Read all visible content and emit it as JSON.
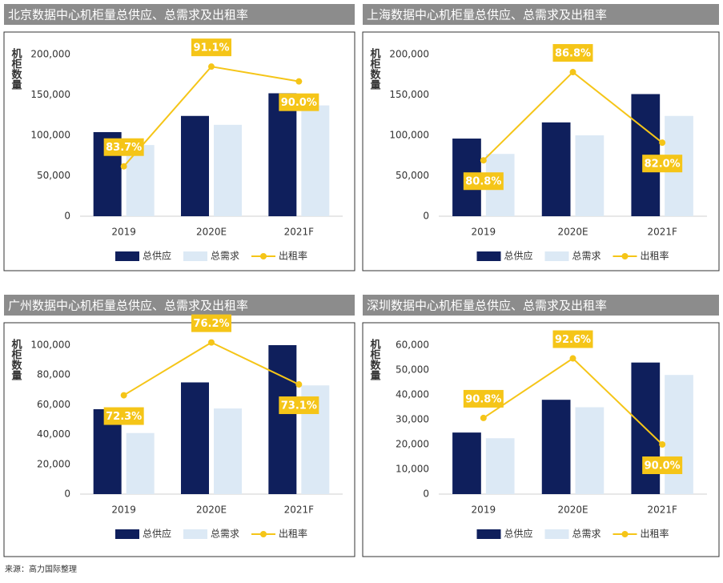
{
  "chart_data": [
    {
      "type": "bar-line",
      "title": "北京数据中心机柜量总供应、总需求及出租率",
      "y_label": "机柜数量",
      "categories": [
        "2019",
        "2020E",
        "2021F"
      ],
      "ylim": [
        0,
        200000
      ],
      "yticks": [
        0,
        {
          "value": 50000,
          "label": "50,000"
        },
        {
          "value": 100000,
          "label": "100,000"
        },
        {
          "value": 150000,
          "label": "150,000"
        },
        {
          "value": 200000,
          "label": "200,000"
        }
      ],
      "y2lim": [
        80,
        92
      ],
      "series": [
        {
          "name": "总供应",
          "color": "#0f1f5c",
          "values": [
            104000,
            124000,
            152000
          ]
        },
        {
          "name": "总需求",
          "color": "#dce9f5",
          "values": [
            88000,
            113000,
            137000
          ]
        },
        {
          "name": "出租率",
          "color": "#f5c518",
          "axis": "y2",
          "values": [
            83.7,
            91.1,
            90.0
          ],
          "value_labels": [
            "83.7%",
            "91.1%",
            "90.0%"
          ]
        }
      ]
    },
    {
      "type": "bar-line",
      "title": "上海数据中心机柜量总供应、总需求及出租率",
      "y_label": "机柜数量",
      "categories": [
        "2019",
        "2020E",
        "2021F"
      ],
      "ylim": [
        0,
        200000
      ],
      "yticks": [
        0,
        {
          "value": 50000,
          "label": "50,000"
        },
        {
          "value": 100000,
          "label": "100,000"
        },
        {
          "value": 150000,
          "label": "150,000"
        },
        {
          "value": 200000,
          "label": "200,000"
        }
      ],
      "y2lim": [
        77,
        88
      ],
      "series": [
        {
          "name": "总供应",
          "color": "#0f1f5c",
          "values": [
            96000,
            116000,
            151000
          ]
        },
        {
          "name": "总需求",
          "color": "#dce9f5",
          "values": [
            77000,
            100000,
            124000
          ]
        },
        {
          "name": "出租率",
          "color": "#f5c518",
          "axis": "y2",
          "values": [
            80.8,
            86.8,
            82.0
          ],
          "value_labels": [
            "80.8%",
            "86.8%",
            "82.0%"
          ]
        }
      ]
    },
    {
      "type": "bar-line",
      "title": "广州数据中心机柜量总供应、总需求及出租率",
      "y_label": "机柜数量",
      "categories": [
        "2019",
        "2020E",
        "2021F"
      ],
      "ylim": [
        0,
        100000
      ],
      "yticks": [
        0,
        {
          "value": 20000,
          "label": "20,000"
        },
        {
          "value": 40000,
          "label": "40,000"
        },
        {
          "value": 60000,
          "label": "60,000"
        },
        {
          "value": 80000,
          "label": "80,000"
        },
        {
          "value": 100000,
          "label": "100,000"
        }
      ],
      "y2lim": [
        65,
        76
      ],
      "series": [
        {
          "name": "总供应",
          "color": "#0f1f5c",
          "values": [
            57000,
            75000,
            100000
          ]
        },
        {
          "name": "总需求",
          "color": "#dce9f5",
          "values": [
            41000,
            57500,
            73000
          ]
        },
        {
          "name": "出租率",
          "color": "#f5c518",
          "axis": "y2",
          "values": [
            72.3,
            76.2,
            73.1
          ],
          "value_labels": [
            "72.3%",
            "76.2%",
            "73.1%"
          ]
        }
      ]
    },
    {
      "type": "bar-line",
      "title": "深圳数据中心机柜量总供应、总需求及出租率",
      "y_label": "机柜数量",
      "categories": [
        "2019",
        "2020E",
        "2021F"
      ],
      "ylim": [
        0,
        60000
      ],
      "yticks": [
        0,
        {
          "value": 10000,
          "label": "10,000"
        },
        {
          "value": 20000,
          "label": "20,000"
        },
        {
          "value": 30000,
          "label": "30,000"
        },
        {
          "value": 40000,
          "label": "40,000"
        },
        {
          "value": 50000,
          "label": "50,000"
        },
        {
          "value": 60000,
          "label": "60,000"
        }
      ],
      "y2lim": [
        88.5,
        93
      ],
      "series": [
        {
          "name": "总供应",
          "color": "#0f1f5c",
          "values": [
            24800,
            38000,
            53000
          ]
        },
        {
          "name": "总需求",
          "color": "#dce9f5",
          "values": [
            22500,
            35000,
            48000
          ]
        },
        {
          "name": "出租率",
          "color": "#f5c518",
          "axis": "y2",
          "values": [
            90.8,
            92.6,
            90.0
          ],
          "value_labels": [
            "90.8%",
            "92.6%",
            "90.0%"
          ]
        }
      ]
    }
  ],
  "source": "来源：高力国际整理"
}
